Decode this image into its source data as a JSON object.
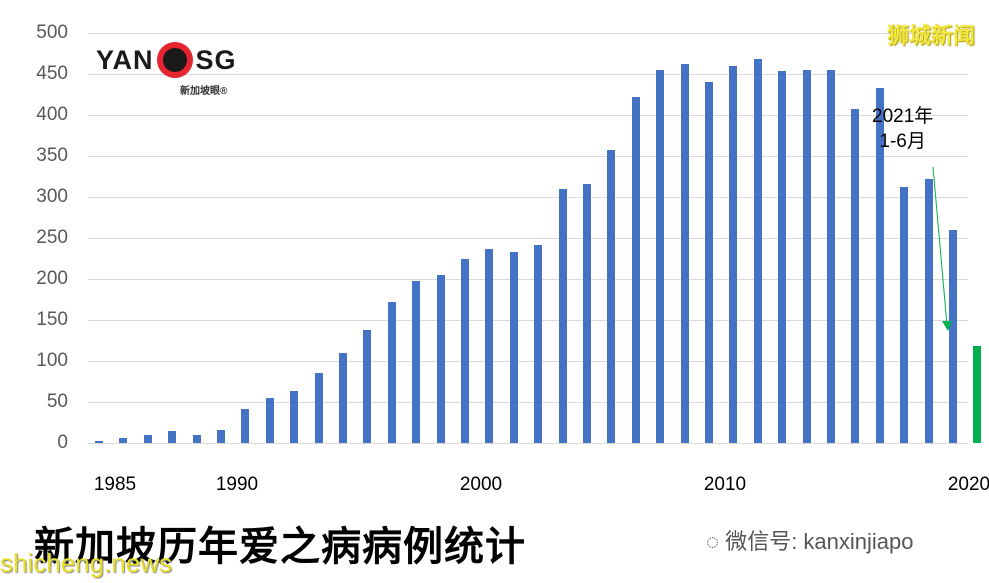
{
  "chart_data": {
    "type": "bar",
    "title": "新加坡历年爱之病病例统计",
    "xlabel": "",
    "ylabel": "",
    "ylim": [
      0,
      500
    ],
    "yticks": [
      0,
      50,
      100,
      150,
      200,
      250,
      300,
      350,
      400,
      450,
      500
    ],
    "xtick_labels": [
      "1985",
      "1990",
      "2000",
      "2010",
      "2020"
    ],
    "grid": true,
    "categories": [
      "1985",
      "1986",
      "1987",
      "1988",
      "1989",
      "1990",
      "1991",
      "1992",
      "1993",
      "1994",
      "1995",
      "1996",
      "1997",
      "1998",
      "1999",
      "2000",
      "2001",
      "2002",
      "2003",
      "2004",
      "2005",
      "2006",
      "2007",
      "2008",
      "2009",
      "2010",
      "2011",
      "2012",
      "2013",
      "2014",
      "2015",
      "2016",
      "2017",
      "2018",
      "2019",
      "2020",
      "2021"
    ],
    "values": [
      2,
      6,
      10,
      15,
      10,
      16,
      42,
      55,
      63,
      85,
      110,
      138,
      172,
      198,
      205,
      225,
      236,
      233,
      241,
      310,
      316,
      357,
      422,
      455,
      462,
      440,
      460,
      468,
      454,
      455,
      455,
      407,
      433,
      312,
      322,
      260,
      118
    ],
    "colors": {
      "default": "#4472c4",
      "highlight": "#00b050"
    },
    "highlight_index": 36,
    "annotation": {
      "text_line1": "2021年",
      "text_line2": "1-6月",
      "arrow_color": "#00b050"
    }
  },
  "logo": {
    "left": "YAN",
    "right": "SG",
    "sub": "新加坡眼®"
  },
  "brand": "狮城新闻",
  "title": "新加坡历年爱之病病例统计",
  "wechat": "微信号: kanxinjiapo",
  "site": "shicheng.news"
}
